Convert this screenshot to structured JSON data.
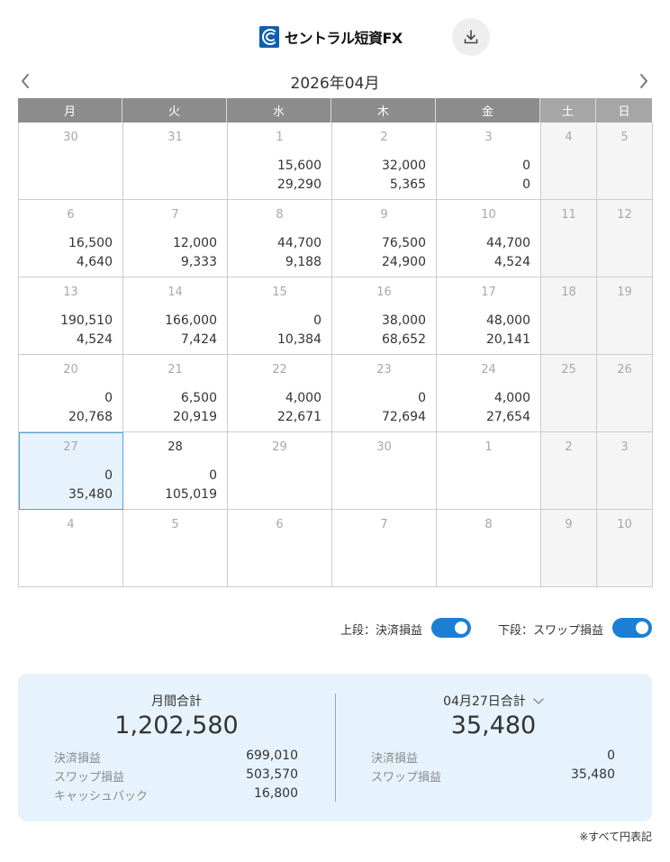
{
  "header": {
    "brand": "セントラル短資FX",
    "download_icon": "download-icon"
  },
  "calendar": {
    "month_title": "2026年04月",
    "weekdays": [
      "月",
      "火",
      "水",
      "木",
      "金",
      "土",
      "日"
    ],
    "weeks": [
      [
        {
          "day": "30",
          "v1": "",
          "v2": ""
        },
        {
          "day": "31",
          "v1": "",
          "v2": ""
        },
        {
          "day": "1",
          "v1": "15,600",
          "v2": "29,290"
        },
        {
          "day": "2",
          "v1": "32,000",
          "v2": "5,365"
        },
        {
          "day": "3",
          "v1": "0",
          "v2": "0"
        },
        {
          "day": "4",
          "v1": "",
          "v2": ""
        },
        {
          "day": "5",
          "v1": "",
          "v2": ""
        }
      ],
      [
        {
          "day": "6",
          "v1": "16,500",
          "v2": "4,640"
        },
        {
          "day": "7",
          "v1": "12,000",
          "v2": "9,333"
        },
        {
          "day": "8",
          "v1": "44,700",
          "v2": "9,188"
        },
        {
          "day": "9",
          "v1": "76,500",
          "v2": "24,900"
        },
        {
          "day": "10",
          "v1": "44,700",
          "v2": "4,524"
        },
        {
          "day": "11",
          "v1": "",
          "v2": ""
        },
        {
          "day": "12",
          "v1": "",
          "v2": ""
        }
      ],
      [
        {
          "day": "13",
          "v1": "190,510",
          "v2": "4,524"
        },
        {
          "day": "14",
          "v1": "166,000",
          "v2": "7,424"
        },
        {
          "day": "15",
          "v1": "0",
          "v2": "10,384"
        },
        {
          "day": "16",
          "v1": "38,000",
          "v2": "68,652"
        },
        {
          "day": "17",
          "v1": "48,000",
          "v2": "20,141"
        },
        {
          "day": "18",
          "v1": "",
          "v2": ""
        },
        {
          "day": "19",
          "v1": "",
          "v2": ""
        }
      ],
      [
        {
          "day": "20",
          "v1": "0",
          "v2": "20,768"
        },
        {
          "day": "21",
          "v1": "6,500",
          "v2": "20,919"
        },
        {
          "day": "22",
          "v1": "4,000",
          "v2": "22,671"
        },
        {
          "day": "23",
          "v1": "0",
          "v2": "72,694"
        },
        {
          "day": "24",
          "v1": "4,000",
          "v2": "27,654"
        },
        {
          "day": "25",
          "v1": "",
          "v2": ""
        },
        {
          "day": "26",
          "v1": "",
          "v2": ""
        }
      ],
      [
        {
          "day": "27",
          "v1": "0",
          "v2": "35,480",
          "selected": true
        },
        {
          "day": "28",
          "v1": "0",
          "v2": "105,019",
          "today": true
        },
        {
          "day": "29",
          "v1": "",
          "v2": ""
        },
        {
          "day": "30",
          "v1": "",
          "v2": ""
        },
        {
          "day": "1",
          "v1": "",
          "v2": ""
        },
        {
          "day": "2",
          "v1": "",
          "v2": ""
        },
        {
          "day": "3",
          "v1": "",
          "v2": ""
        }
      ],
      [
        {
          "day": "4",
          "v1": "",
          "v2": ""
        },
        {
          "day": "5",
          "v1": "",
          "v2": ""
        },
        {
          "day": "6",
          "v1": "",
          "v2": ""
        },
        {
          "day": "7",
          "v1": "",
          "v2": ""
        },
        {
          "day": "8",
          "v1": "",
          "v2": ""
        },
        {
          "day": "9",
          "v1": "",
          "v2": ""
        },
        {
          "day": "10",
          "v1": "",
          "v2": ""
        }
      ]
    ]
  },
  "toggles": {
    "upper_label": "上段：決済損益",
    "lower_label": "下段：スワップ損益",
    "upper_on": true,
    "lower_on": true
  },
  "summary": {
    "monthly": {
      "title": "月間合計",
      "total": "1,202,580",
      "rows": [
        {
          "label": "決済損益",
          "value": "699,010"
        },
        {
          "label": "スワップ損益",
          "value": "503,570"
        },
        {
          "label": "キャッシュバック",
          "value": "16,800"
        }
      ]
    },
    "daily": {
      "title": "04月27日合計",
      "total": "35,480",
      "rows": [
        {
          "label": "決済損益",
          "value": "0"
        },
        {
          "label": "スワップ損益",
          "value": "35,480"
        }
      ]
    }
  },
  "footnote": "※すべて円表記",
  "colors": {
    "accent": "#1c7fd6",
    "header_weekday": "#8c8c8c",
    "header_weekend": "#a6a6a6",
    "summary_bg": "#e6f3fc"
  }
}
